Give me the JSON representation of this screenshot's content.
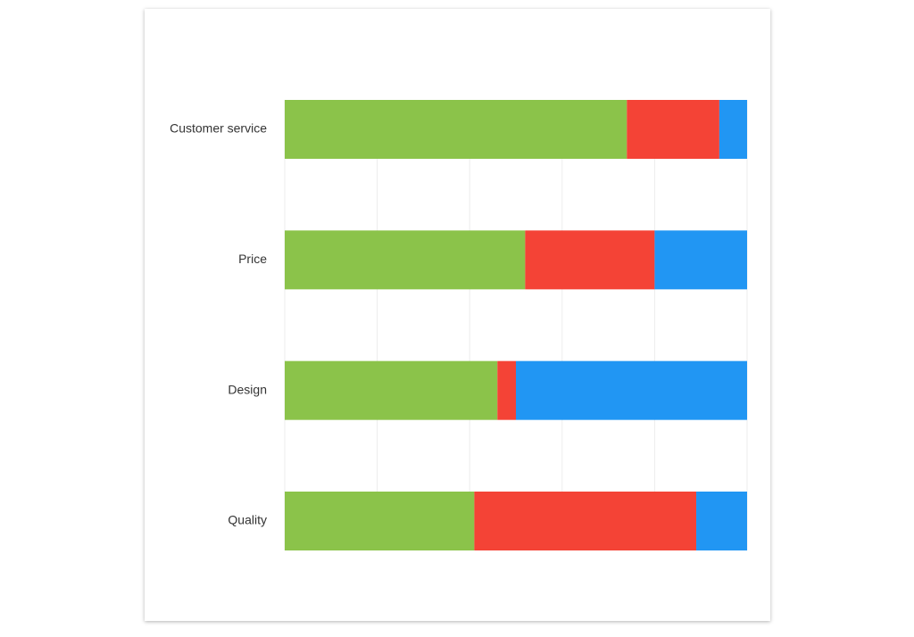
{
  "chart_data": {
    "type": "stacked-bar-horizontal",
    "categories": [
      "Customer service",
      "Price",
      "Design",
      "Quality"
    ],
    "series": [
      {
        "color": "#8bc34a",
        "values": [
          74,
          52,
          46,
          41
        ]
      },
      {
        "color": "#f44336",
        "values": [
          20,
          28,
          4,
          48
        ]
      },
      {
        "color": "#2196f3",
        "values": [
          6,
          20,
          50,
          11
        ]
      }
    ],
    "xlim": [
      0,
      100
    ],
    "xticks": [
      0,
      20,
      40,
      60,
      80,
      100
    ],
    "grid": true
  }
}
